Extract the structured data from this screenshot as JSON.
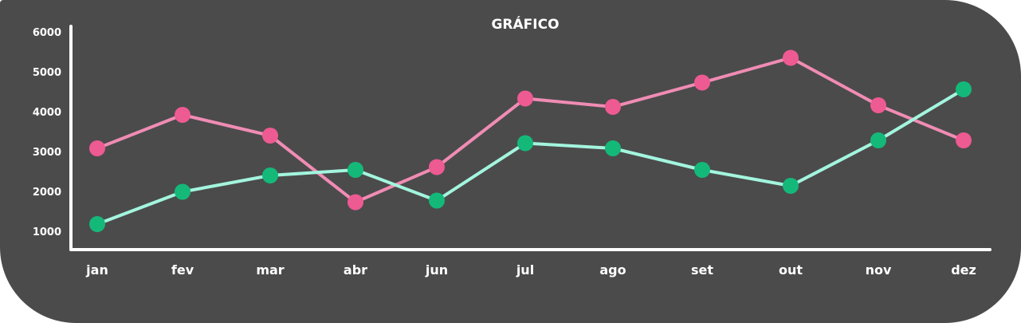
{
  "chart_data": {
    "type": "line",
    "title": "GRÁFICO",
    "xlabel": "",
    "ylabel": "",
    "categories": [
      "jan",
      "fev",
      "mar",
      "abr",
      "jun",
      "jul",
      "ago",
      "set",
      "out",
      "nov",
      "dez"
    ],
    "yticks": [
      "1000",
      "2000",
      "3000",
      "4000",
      "5000",
      "6000"
    ],
    "ylim": [
      800,
      6000
    ],
    "grid": false,
    "legend": "none",
    "series": [
      {
        "values": [
          3080,
          3920,
          3400,
          1730,
          2610,
          4330,
          4120,
          4730,
          5350,
          4160,
          3280
        ],
        "line_color": "#f08cb4",
        "marker_color": "#ee5a92"
      },
      {
        "values": [
          1180,
          1990,
          2400,
          2540,
          1770,
          3210,
          3080,
          2540,
          2140,
          3280,
          4560
        ],
        "line_color": "#a3f5de",
        "marker_color": "#14b97a"
      }
    ]
  }
}
